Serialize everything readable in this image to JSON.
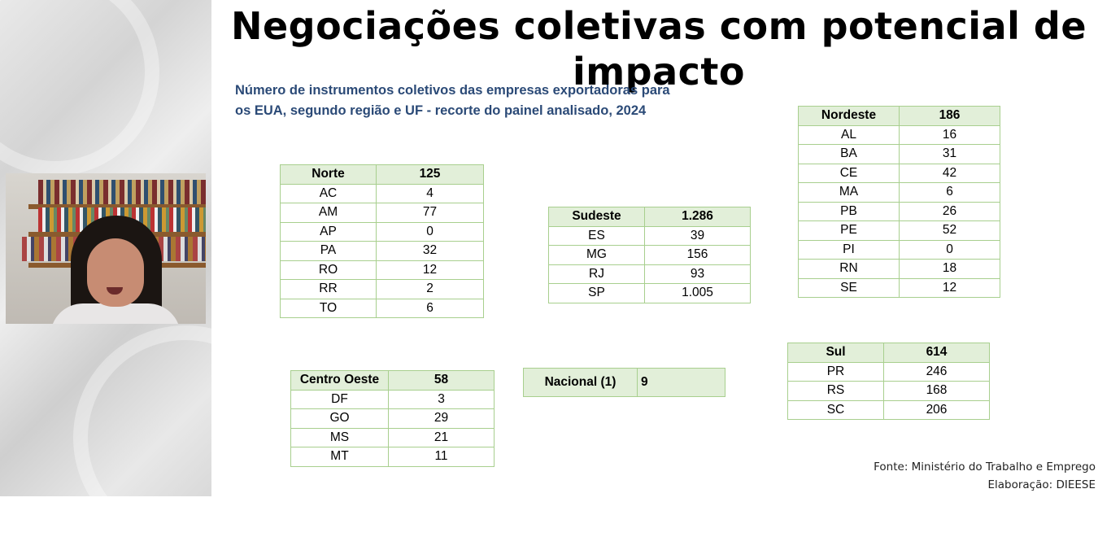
{
  "title": "Negociações coletivas com potencial de impacto",
  "subtitle": "Número de instrumentos coletivos das empresas exportadoras para os EUA, segundo região e UF - recorte do painel analisado, 2024",
  "regions": {
    "norte": {
      "name": "Norte",
      "total": "125",
      "rows": [
        {
          "uf": "AC",
          "value": "4"
        },
        {
          "uf": "AM",
          "value": "77"
        },
        {
          "uf": "AP",
          "value": "0"
        },
        {
          "uf": "PA",
          "value": "32"
        },
        {
          "uf": "RO",
          "value": "12"
        },
        {
          "uf": "RR",
          "value": "2"
        },
        {
          "uf": "TO",
          "value": "6"
        }
      ]
    },
    "sudeste": {
      "name": "Sudeste",
      "total": "1.286",
      "rows": [
        {
          "uf": "ES",
          "value": "39"
        },
        {
          "uf": "MG",
          "value": "156"
        },
        {
          "uf": "RJ",
          "value": "93"
        },
        {
          "uf": "SP",
          "value": "1.005"
        }
      ]
    },
    "nordeste": {
      "name": "Nordeste",
      "total": "186",
      "rows": [
        {
          "uf": "AL",
          "value": "16"
        },
        {
          "uf": "BA",
          "value": "31"
        },
        {
          "uf": "CE",
          "value": "42"
        },
        {
          "uf": "MA",
          "value": "6"
        },
        {
          "uf": "PB",
          "value": "26"
        },
        {
          "uf": "PE",
          "value": "52"
        },
        {
          "uf": "PI",
          "value": "0"
        },
        {
          "uf": "RN",
          "value": "18"
        },
        {
          "uf": "SE",
          "value": "12"
        }
      ]
    },
    "centro_oeste": {
      "name": "Centro Oeste",
      "total": "58",
      "rows": [
        {
          "uf": "DF",
          "value": "3"
        },
        {
          "uf": "GO",
          "value": "29"
        },
        {
          "uf": "MS",
          "value": "21"
        },
        {
          "uf": "MT",
          "value": "11"
        }
      ]
    },
    "nacional": {
      "name": "Nacional (1)",
      "total": "9"
    },
    "sul": {
      "name": "Sul",
      "total": "614",
      "rows": [
        {
          "uf": "PR",
          "value": "246"
        },
        {
          "uf": "RS",
          "value": "168"
        },
        {
          "uf": "SC",
          "value": "206"
        }
      ]
    }
  },
  "footer": {
    "source": "Fonte: Ministério do Trabalho e Emprego",
    "credit": "Elaboração: DIEESE"
  },
  "colors": {
    "border": "#a8cf8e",
    "header_bg": "#e2efd9",
    "subtitle": "#2b4a77"
  }
}
